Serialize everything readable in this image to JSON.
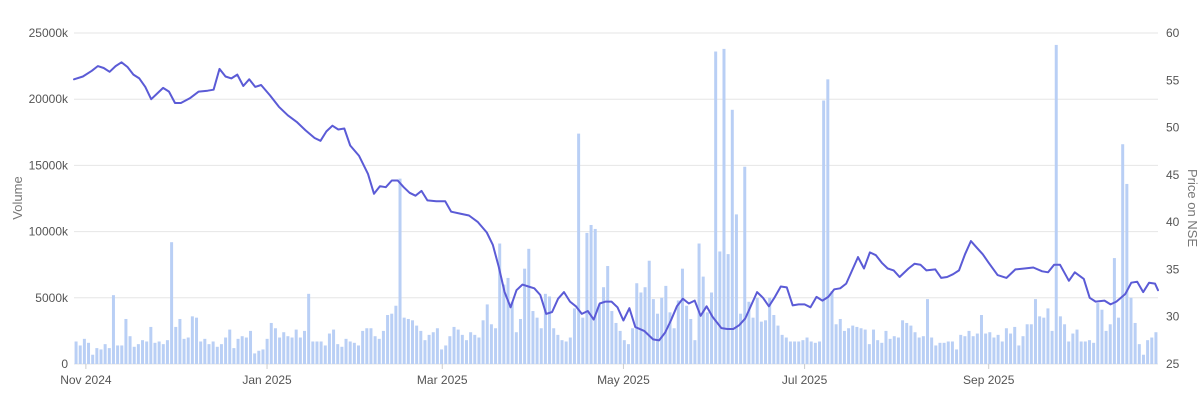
{
  "chart_data": {
    "type": "bar+line",
    "x_range": [
      "2024-10-28",
      "2025-10-28"
    ],
    "x_ticks": [
      "Nov 2024",
      "Jan 2025",
      "Mar 2025",
      "May 2025",
      "Jul 2025",
      "Sep 2025"
    ],
    "y_left": {
      "label": "Volume",
      "ylim": [
        0,
        25000
      ],
      "ticks": [
        "0",
        "5000k",
        "10000k",
        "15000k",
        "20000k",
        "25000k"
      ]
    },
    "y_right": {
      "label": "Price on NSE",
      "ylim": [
        25,
        60
      ],
      "ticks": [
        "25",
        "30",
        "35",
        "40",
        "45",
        "50",
        "55",
        "60"
      ]
    },
    "grid": true,
    "legend": "none",
    "colors": {
      "volume_bar": "#b9cff5",
      "price_line": "#5b5bd6"
    },
    "series": [
      {
        "type": "bar",
        "axis": "left",
        "unit": "thousands",
        "values": [
          1700,
          1400,
          1900,
          1600,
          700,
          1200,
          1100,
          1500,
          1200,
          5200,
          1400,
          1400,
          3400,
          2100,
          1300,
          1500,
          1800,
          1700,
          2800,
          1600,
          1700,
          1500,
          1800,
          9200,
          2800,
          3400,
          1900,
          2000,
          3600,
          3500,
          1700,
          1900,
          1500,
          1700,
          1300,
          1500,
          2000,
          2600,
          1200,
          1900,
          2100,
          2000,
          2500,
          800,
          1000,
          1100,
          1900,
          3100,
          2700,
          2000,
          2400,
          2100,
          2000,
          2600,
          2000,
          2500,
          5300,
          1700,
          1700,
          1700,
          1400,
          2300,
          2600,
          1500,
          1300,
          1900,
          1700,
          1600,
          1400,
          2500,
          2700,
          2700,
          2100,
          1900,
          2500,
          3700,
          3800,
          4400,
          14000,
          3500,
          3400,
          3300,
          2900,
          2500,
          1800,
          2200,
          2400,
          2700,
          1100,
          1400,
          2100,
          2800,
          2600,
          2200,
          1800,
          2400,
          2200,
          2000,
          3300,
          4500,
          3000,
          2700,
          9100,
          6000,
          6500,
          4700,
          2400,
          3400,
          7200,
          8700,
          4000,
          3500,
          2700,
          5300,
          5100,
          2700,
          2200,
          1800,
          1700,
          2000,
          4200,
          17400,
          3500,
          9900,
          10500,
          10200,
          4500,
          5800,
          7400,
          4000,
          3100,
          2500,
          1800,
          1500,
          2700,
          6100,
          5400,
          5800,
          7800,
          4900,
          3800,
          5000,
          5900,
          3900,
          2700,
          4800,
          7200,
          4400,
          3400,
          1800,
          9100,
          6600,
          3900,
          5400,
          23600,
          8500,
          23800,
          8300,
          19200,
          11300,
          3800,
          14900,
          4700,
          3500,
          5000,
          3200,
          3300,
          5000,
          3700,
          2900,
          2200,
          2000,
          1700,
          1700,
          1700,
          1800,
          2000,
          1700,
          1600,
          1700,
          19900,
          21500,
          5500,
          3000,
          3400,
          2500,
          2700,
          2900,
          2800,
          2700,
          2600,
          1500,
          2600,
          1800,
          1600,
          2500,
          1900,
          2100,
          2000,
          3300,
          3100,
          2900,
          2400,
          2000,
          2100,
          4900,
          2000,
          1400,
          1600,
          1600,
          1700,
          1700,
          1100,
          2200,
          2100,
          2500,
          2100,
          2300,
          3700,
          2300,
          2400,
          2000,
          2200,
          1700,
          2700,
          2300,
          2800,
          1400,
          2100,
          3000,
          3000,
          4900,
          3600,
          3500,
          4200,
          2500,
          24100,
          3600,
          3000,
          1700,
          2300,
          2600,
          1700,
          1700,
          1800,
          1600,
          4600,
          4100,
          2500,
          3000,
          8000,
          3500,
          16600,
          13600,
          5000,
          3100,
          1500,
          700,
          1800,
          2000,
          2400
        ]
      },
      {
        "type": "line",
        "axis": "right",
        "points": [
          [
            "2024-10-28",
            55.1
          ],
          [
            "2024-10-31",
            55.4
          ],
          [
            "2024-11-03",
            56.0
          ],
          [
            "2024-11-05",
            56.5
          ],
          [
            "2024-11-07",
            56.3
          ],
          [
            "2024-11-09",
            55.9
          ],
          [
            "2024-11-11",
            56.5
          ],
          [
            "2024-11-13",
            56.9
          ],
          [
            "2024-11-15",
            56.4
          ],
          [
            "2024-11-17",
            55.6
          ],
          [
            "2024-11-19",
            55.2
          ],
          [
            "2024-11-21",
            54.3
          ],
          [
            "2024-11-23",
            53.0
          ],
          [
            "2024-11-25",
            53.6
          ],
          [
            "2024-11-27",
            54.2
          ],
          [
            "2024-11-29",
            53.8
          ],
          [
            "2024-12-01",
            52.6
          ],
          [
            "2024-12-03",
            52.6
          ],
          [
            "2024-12-06",
            53.1
          ],
          [
            "2024-12-09",
            53.8
          ],
          [
            "2024-12-12",
            53.9
          ],
          [
            "2024-12-14",
            54.0
          ],
          [
            "2024-12-16",
            56.2
          ],
          [
            "2024-12-18",
            55.4
          ],
          [
            "2024-12-20",
            55.2
          ],
          [
            "2024-12-22",
            55.6
          ],
          [
            "2024-12-24",
            54.4
          ],
          [
            "2024-12-26",
            55.1
          ],
          [
            "2024-12-28",
            54.3
          ],
          [
            "2024-12-30",
            54.5
          ],
          [
            "2025-01-02",
            53.4
          ],
          [
            "2025-01-05",
            52.2
          ],
          [
            "2025-01-08",
            51.3
          ],
          [
            "2025-01-11",
            50.6
          ],
          [
            "2025-01-14",
            49.7
          ],
          [
            "2025-01-17",
            48.9
          ],
          [
            "2025-01-19",
            48.6
          ],
          [
            "2025-01-21",
            49.6
          ],
          [
            "2025-01-23",
            50.2
          ],
          [
            "2025-01-25",
            49.8
          ],
          [
            "2025-01-27",
            49.9
          ],
          [
            "2025-01-29",
            48.1
          ],
          [
            "2025-02-01",
            47.0
          ],
          [
            "2025-02-04",
            45.1
          ],
          [
            "2025-02-06",
            43.0
          ],
          [
            "2025-02-08",
            43.8
          ],
          [
            "2025-02-10",
            43.7
          ],
          [
            "2025-02-12",
            44.4
          ],
          [
            "2025-02-14",
            44.4
          ],
          [
            "2025-02-16",
            43.7
          ],
          [
            "2025-02-18",
            43.1
          ],
          [
            "2025-02-20",
            42.8
          ],
          [
            "2025-02-22",
            43.3
          ],
          [
            "2025-02-24",
            42.3
          ],
          [
            "2025-02-27",
            42.2
          ],
          [
            "2025-03-02",
            42.2
          ],
          [
            "2025-03-04",
            41.1
          ],
          [
            "2025-03-07",
            40.9
          ],
          [
            "2025-03-10",
            40.7
          ],
          [
            "2025-03-13",
            40.0
          ],
          [
            "2025-03-16",
            38.9
          ],
          [
            "2025-03-18",
            37.6
          ],
          [
            "2025-03-20",
            35.3
          ],
          [
            "2025-03-22",
            32.6
          ],
          [
            "2025-03-24",
            31.0
          ],
          [
            "2025-03-26",
            32.8
          ],
          [
            "2025-03-28",
            33.4
          ],
          [
            "2025-03-30",
            33.2
          ],
          [
            "2025-04-01",
            33.0
          ],
          [
            "2025-04-03",
            32.3
          ],
          [
            "2025-04-05",
            30.3
          ],
          [
            "2025-04-07",
            30.5
          ],
          [
            "2025-04-09",
            31.9
          ],
          [
            "2025-04-11",
            32.6
          ],
          [
            "2025-04-13",
            31.6
          ],
          [
            "2025-04-15",
            31.1
          ],
          [
            "2025-04-17",
            30.3
          ],
          [
            "2025-04-19",
            30.6
          ],
          [
            "2025-04-21",
            29.7
          ],
          [
            "2025-04-23",
            31.4
          ],
          [
            "2025-04-25",
            31.6
          ],
          [
            "2025-04-27",
            31.6
          ],
          [
            "2025-04-29",
            31.0
          ],
          [
            "2025-05-01",
            29.6
          ],
          [
            "2025-05-03",
            30.9
          ],
          [
            "2025-05-05",
            28.9
          ],
          [
            "2025-05-08",
            28.5
          ],
          [
            "2025-05-11",
            27.6
          ],
          [
            "2025-05-13",
            27.5
          ],
          [
            "2025-05-15",
            28.3
          ],
          [
            "2025-05-17",
            29.6
          ],
          [
            "2025-05-19",
            31.1
          ],
          [
            "2025-05-21",
            31.9
          ],
          [
            "2025-05-23",
            31.4
          ],
          [
            "2025-05-25",
            31.7
          ],
          [
            "2025-05-27",
            30.1
          ],
          [
            "2025-05-29",
            31.1
          ],
          [
            "2025-05-31",
            30.0
          ],
          [
            "2025-06-03",
            28.8
          ],
          [
            "2025-06-05",
            28.7
          ],
          [
            "2025-06-07",
            28.7
          ],
          [
            "2025-06-09",
            29.1
          ],
          [
            "2025-06-11",
            29.8
          ],
          [
            "2025-06-13",
            31.2
          ],
          [
            "2025-06-15",
            32.6
          ],
          [
            "2025-06-17",
            32.0
          ],
          [
            "2025-06-19",
            31.1
          ],
          [
            "2025-06-21",
            32.1
          ],
          [
            "2025-06-23",
            33.2
          ],
          [
            "2025-06-25",
            33.1
          ],
          [
            "2025-06-27",
            31.2
          ],
          [
            "2025-06-29",
            31.3
          ],
          [
            "2025-07-01",
            31.3
          ],
          [
            "2025-07-03",
            31.0
          ],
          [
            "2025-07-05",
            32.1
          ],
          [
            "2025-07-07",
            31.7
          ],
          [
            "2025-07-09",
            32.1
          ],
          [
            "2025-07-11",
            32.9
          ],
          [
            "2025-07-13",
            33.0
          ],
          [
            "2025-07-15",
            33.5
          ],
          [
            "2025-07-17",
            34.9
          ],
          [
            "2025-07-19",
            36.3
          ],
          [
            "2025-07-21",
            35.1
          ],
          [
            "2025-07-23",
            36.8
          ],
          [
            "2025-07-25",
            36.5
          ],
          [
            "2025-07-27",
            35.7
          ],
          [
            "2025-07-29",
            35.1
          ],
          [
            "2025-07-31",
            34.9
          ],
          [
            "2025-08-02",
            34.2
          ],
          [
            "2025-08-05",
            35.1
          ],
          [
            "2025-08-07",
            35.6
          ],
          [
            "2025-08-09",
            35.5
          ],
          [
            "2025-08-11",
            34.9
          ],
          [
            "2025-08-14",
            35.0
          ],
          [
            "2025-08-16",
            34.1
          ],
          [
            "2025-08-18",
            34.2
          ],
          [
            "2025-08-20",
            34.5
          ],
          [
            "2025-08-22",
            34.9
          ],
          [
            "2025-08-24",
            36.6
          ],
          [
            "2025-08-26",
            38.0
          ],
          [
            "2025-08-28",
            37.3
          ],
          [
            "2025-08-30",
            36.6
          ],
          [
            "2025-09-01",
            35.7
          ],
          [
            "2025-09-04",
            34.4
          ],
          [
            "2025-09-07",
            34.1
          ],
          [
            "2025-09-10",
            35.0
          ],
          [
            "2025-09-13",
            35.1
          ],
          [
            "2025-09-16",
            35.2
          ],
          [
            "2025-09-19",
            34.8
          ],
          [
            "2025-09-21",
            34.7
          ],
          [
            "2025-09-23",
            35.5
          ],
          [
            "2025-09-25",
            35.5
          ],
          [
            "2025-09-28",
            33.8
          ],
          [
            "2025-09-30",
            34.7
          ],
          [
            "2025-10-03",
            34.0
          ],
          [
            "2025-10-05",
            32.0
          ],
          [
            "2025-10-07",
            31.6
          ],
          [
            "2025-10-10",
            31.7
          ],
          [
            "2025-10-12",
            31.3
          ],
          [
            "2025-10-14",
            31.6
          ],
          [
            "2025-10-17",
            32.4
          ],
          [
            "2025-10-19",
            33.6
          ],
          [
            "2025-10-21",
            33.7
          ],
          [
            "2025-10-23",
            32.6
          ],
          [
            "2025-10-25",
            33.6
          ],
          [
            "2025-10-27",
            33.5
          ],
          [
            "2025-10-28",
            32.8
          ]
        ]
      }
    ]
  }
}
